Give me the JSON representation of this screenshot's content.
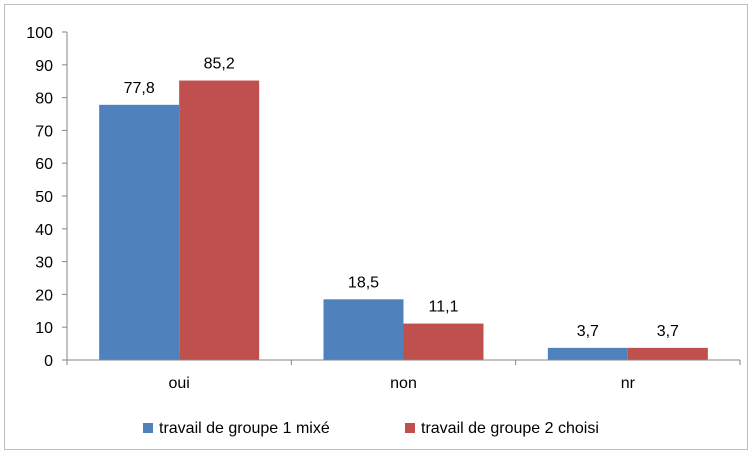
{
  "chart_data": {
    "type": "bar",
    "categories": [
      "oui",
      "non",
      "nr"
    ],
    "series": [
      {
        "name": "travail de groupe 1 mixé",
        "values": [
          77.8,
          18.5,
          3.7
        ],
        "labels": [
          "77,8",
          "18,5",
          "3,7"
        ],
        "color": "#4f81bd"
      },
      {
        "name": "travail de groupe 2 choisi",
        "values": [
          85.2,
          11.1,
          3.7
        ],
        "labels": [
          "85,2",
          "11,1",
          "3,7"
        ],
        "color": "#c0504d"
      }
    ],
    "ylim": [
      0,
      100
    ],
    "yticks": [
      0,
      10,
      20,
      30,
      40,
      50,
      60,
      70,
      80,
      90,
      100
    ],
    "grid": false,
    "legend": "bottom",
    "axis_color": "#868686",
    "frame_color": "#bfbfbf"
  }
}
